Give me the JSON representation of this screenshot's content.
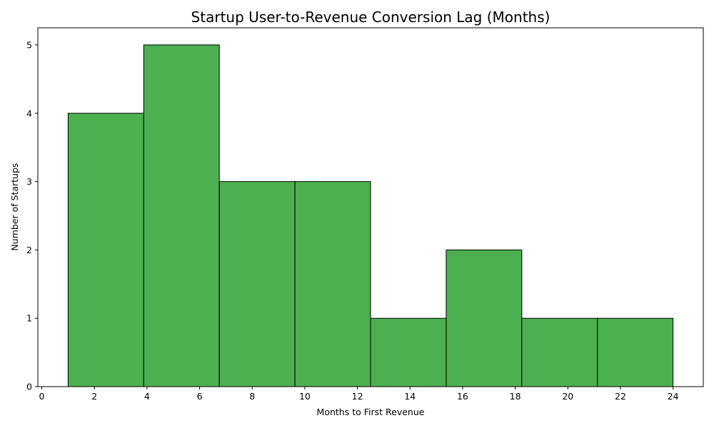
{
  "chart_data": {
    "type": "bar",
    "title": "Startup User-to-Revenue Conversion Lag (Months)",
    "xlabel": "Months to First Revenue",
    "ylabel": "Number of Startups",
    "bin_edges": [
      1,
      3.875,
      6.75,
      9.625,
      12.5,
      15.375,
      18.25,
      21.125,
      24
    ],
    "values": [
      4,
      5,
      3,
      3,
      1,
      2,
      1,
      1
    ],
    "xlim": [
      -0.15,
      25.15
    ],
    "ylim": [
      0,
      5.25
    ],
    "xticks": [
      0,
      2,
      4,
      6,
      8,
      10,
      12,
      14,
      16,
      18,
      20,
      22,
      24
    ],
    "yticks": [
      0,
      1,
      2,
      3,
      4,
      5
    ],
    "grid": false,
    "colors": {
      "bar_fill": "#4CB050",
      "bar_edge": "#000000"
    }
  }
}
